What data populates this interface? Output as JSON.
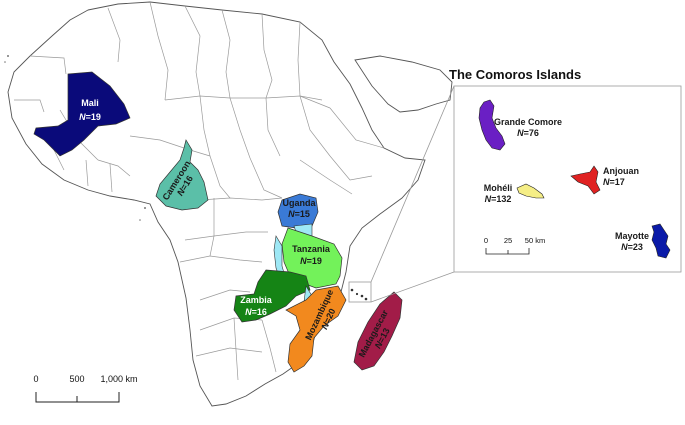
{
  "main_map": {
    "scale_bar": {
      "ticks": [
        "0",
        "500",
        "1,000 km"
      ]
    },
    "countries": {
      "mali": {
        "name": "Mali",
        "n": "19",
        "color": "#0a0a7a"
      },
      "cameroon": {
        "name": "Cameroon",
        "n": "16",
        "color": "#5bbfa8"
      },
      "uganda": {
        "name": "Uganda",
        "n": "15",
        "color": "#3a7ad6"
      },
      "tanzania": {
        "name": "Tanzania",
        "n": "19",
        "color": "#73f25a"
      },
      "zambia": {
        "name": "Zambia",
        "n": "16",
        "color": "#158415"
      },
      "mozambique": {
        "name": "Mozambique",
        "n": "20",
        "color": "#f2891e"
      },
      "madagascar": {
        "name": "Madagascar",
        "n": "13",
        "color": "#a21c48"
      }
    },
    "lake_color": "#9ee8f5"
  },
  "inset": {
    "title": "The Comoros Islands",
    "scale_bar": {
      "ticks": [
        "0",
        "25",
        "50 km"
      ]
    },
    "islands": {
      "grande_comore": {
        "name": "Grande Comore",
        "n": "76",
        "color": "#6a1fc4"
      },
      "anjouan": {
        "name": "Anjouan",
        "n": "17",
        "color": "#e02222"
      },
      "moheli": {
        "name": "Mohéli",
        "n": "132",
        "color": "#f5ee86"
      },
      "mayotte": {
        "name": "Mayotte",
        "n": "23",
        "color": "#0a1aa8"
      }
    }
  },
  "n_prefix": "N",
  "n_equals": "=",
  "colors": {
    "land": "#ffffff",
    "border": "#9a9a9a",
    "coast": "#555555"
  }
}
